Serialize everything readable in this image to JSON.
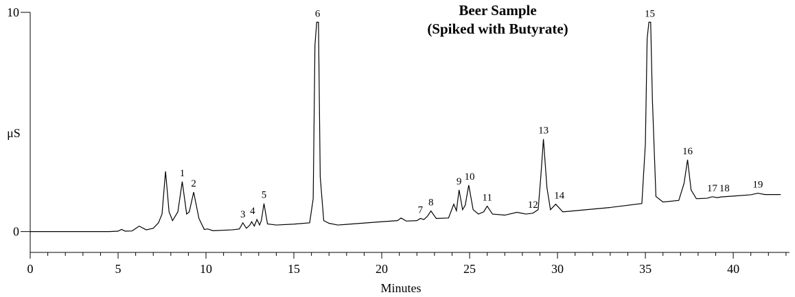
{
  "chart_data": {
    "type": "line",
    "title": "Beer Sample",
    "subtitle": "(Spiked with Butyrate)",
    "xlabel": "Minutes",
    "ylabel": "μS",
    "color": "#000000",
    "xlim": [
      0,
      43.2
    ],
    "ylim": [
      -0.95,
      10
    ],
    "xticks": [
      0,
      5,
      10,
      15,
      20,
      25,
      30,
      35,
      40
    ],
    "xminor_ticks": [
      1,
      2,
      3,
      4,
      6,
      7,
      8,
      9,
      11,
      12,
      13,
      14,
      16,
      17,
      18,
      19,
      21,
      22,
      23,
      24,
      26,
      27,
      28,
      29,
      31,
      32,
      33,
      34,
      36,
      37,
      38,
      39,
      41,
      42,
      43
    ],
    "yticks": [
      0,
      10
    ],
    "x": [
      0,
      4.5,
      5.0,
      5.2,
      5.4,
      5.8,
      6.2,
      6.6,
      7.0,
      7.3,
      7.5,
      7.7,
      7.9,
      8.1,
      8.4,
      8.65,
      8.9,
      9.05,
      9.3,
      9.6,
      9.9,
      10.1,
      10.4,
      11.5,
      11.9,
      12.1,
      12.3,
      12.5,
      12.6,
      12.75,
      12.9,
      13.05,
      13.15,
      13.3,
      13.5,
      14,
      15,
      15.9,
      16.1,
      16.2,
      16.3,
      16.4,
      16.5,
      16.7,
      17,
      17.5,
      18,
      20,
      20.9,
      21.1,
      21.4,
      22,
      22.2,
      22.4,
      22.6,
      22.8,
      23.1,
      23.8,
      24.1,
      24.25,
      24.4,
      24.6,
      24.75,
      24.95,
      25.2,
      25.5,
      25.8,
      26,
      26.3,
      27,
      27.7,
      28.2,
      28.6,
      28.9,
      29.05,
      29.2,
      29.4,
      29.6,
      29.9,
      30.3,
      31,
      33,
      34.8,
      35.0,
      35.1,
      35.2,
      35.3,
      35.4,
      35.6,
      36,
      36.9,
      37.2,
      37.4,
      37.6,
      37.9,
      38.5,
      38.8,
      39.1,
      39.3,
      40,
      41,
      41.4,
      41.8,
      42.7
    ],
    "values": [
      0,
      0,
      0.02,
      0.1,
      0.02,
      0.03,
      0.25,
      0.08,
      0.15,
      0.4,
      0.8,
      2.75,
      0.9,
      0.5,
      0.9,
      2.28,
      0.8,
      0.9,
      1.8,
      0.6,
      0.1,
      0.12,
      0.04,
      0.08,
      0.12,
      0.4,
      0.15,
      0.3,
      0.45,
      0.25,
      0.55,
      0.3,
      0.5,
      1.28,
      0.35,
      0.3,
      0.34,
      0.4,
      1.5,
      8.5,
      9.55,
      9.55,
      2.5,
      0.5,
      0.38,
      0.3,
      0.33,
      0.45,
      0.5,
      0.62,
      0.48,
      0.5,
      0.6,
      0.55,
      0.7,
      0.94,
      0.6,
      0.62,
      1.25,
      0.95,
      1.9,
      1.0,
      1.2,
      2.12,
      1.0,
      0.8,
      0.9,
      1.16,
      0.8,
      0.75,
      0.88,
      0.8,
      0.84,
      1.0,
      2.5,
      4.22,
      2.0,
      1.0,
      1.25,
      0.9,
      0.95,
      1.1,
      1.28,
      4,
      8.8,
      9.55,
      9.55,
      6,
      1.6,
      1.35,
      1.42,
      2.2,
      3.28,
      1.9,
      1.5,
      1.52,
      1.59,
      1.55,
      1.58,
      1.62,
      1.68,
      1.75,
      1.69,
      1.69
    ],
    "peak_labels": [
      {
        "label": "1",
        "x": 8.65,
        "y": 2.28
      },
      {
        "label": "2",
        "x": 9.3,
        "y": 1.8
      },
      {
        "label": "3",
        "x": 12.1,
        "y": 0.4
      },
      {
        "label": "4",
        "x": 12.65,
        "y": 0.55
      },
      {
        "label": "5",
        "x": 13.3,
        "y": 1.28
      },
      {
        "label": "6",
        "x": 16.35,
        "y": 9.55
      },
      {
        "label": "7",
        "x": 22.2,
        "y": 0.6
      },
      {
        "label": "8",
        "x": 22.8,
        "y": 0.94
      },
      {
        "label": "9",
        "x": 24.4,
        "y": 1.9
      },
      {
        "label": "10",
        "x": 25.0,
        "y": 2.12
      },
      {
        "label": "11",
        "x": 26.0,
        "y": 1.16
      },
      {
        "label": "12",
        "x": 28.6,
        "y": 0.84
      },
      {
        "label": "13",
        "x": 29.2,
        "y": 4.22
      },
      {
        "label": "14",
        "x": 30.1,
        "y": 1.25
      },
      {
        "label": "15",
        "x": 35.25,
        "y": 9.55
      },
      {
        "label": "16",
        "x": 37.4,
        "y": 3.28
      },
      {
        "label": "17",
        "x": 38.8,
        "y": 1.59
      },
      {
        "label": "18",
        "x": 39.5,
        "y": 1.58
      },
      {
        "label": "19",
        "x": 41.4,
        "y": 1.75
      }
    ]
  }
}
